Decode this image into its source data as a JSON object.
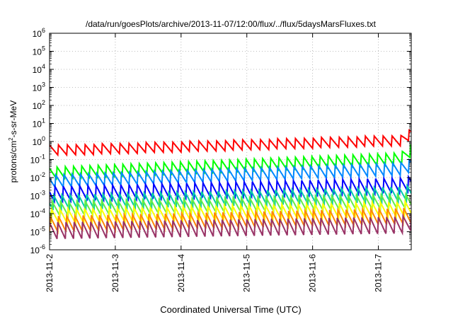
{
  "chart_data": {
    "type": "line",
    "title": "/data/run/goesPlots/archive/2013-11-07/12:00/flux/../flux/5daysMarsFluxes.txt",
    "xlabel": "Coordinated Universal Time (UTC)",
    "ylabel": "protons/cm2-s-sr-MeV",
    "ylabel_parts": {
      "base": "protons/cm",
      "sup": "2",
      "rest": "-s-sr-MeV"
    },
    "yscale": "log",
    "ylim_exp": [
      -6,
      6
    ],
    "xlim": [
      "2013-11-02 00:00",
      "2013-11-07 12:00"
    ],
    "x_ticks": [
      "2013-11-2",
      "2013-11-3",
      "2013-11-4",
      "2013-11-5",
      "2013-11-6",
      "2013-11-7"
    ],
    "y_ticks": [
      {
        "base": "10",
        "exp": "6"
      },
      {
        "base": "10",
        "exp": "5"
      },
      {
        "base": "10",
        "exp": "4"
      },
      {
        "base": "10",
        "exp": "3"
      },
      {
        "base": "10",
        "exp": "2"
      },
      {
        "base": "10",
        "exp": "1"
      },
      {
        "base": "10",
        "exp": "0"
      },
      {
        "base": "10",
        "exp": "-1"
      },
      {
        "base": "10",
        "exp": "-2"
      },
      {
        "base": "10",
        "exp": "-3"
      },
      {
        "base": "10",
        "exp": "-4"
      },
      {
        "base": "10",
        "exp": "-5"
      },
      {
        "base": "10",
        "exp": "-6"
      }
    ],
    "grid": true,
    "series": [
      {
        "color": "#ff0000",
        "base_start": 0.32,
        "base_end": 1.2,
        "amplitude": 0.6,
        "period_h": 3.2,
        "end_spike": 6
      },
      {
        "color": "#00ff00",
        "base_start": 0.018,
        "base_end": 0.12,
        "amplitude": 0.7,
        "period_h": 3.0,
        "end_spike": 0.8
      },
      {
        "color": "#0088ff",
        "base_start": 0.006,
        "base_end": 0.03,
        "amplitude": 0.75,
        "period_h": 3.0,
        "end_spike": 0.1
      },
      {
        "color": "#0000ff",
        "base_start": 0.0013,
        "base_end": 0.004,
        "amplitude": 0.9,
        "period_h": 3.0,
        "end_spike": 0.01
      },
      {
        "color": "#00ccaa",
        "base_start": 0.0004,
        "base_end": 0.0012,
        "amplitude": 0.9,
        "period_h": 3.0,
        "end_spike": 0.003
      },
      {
        "color": "#66ee44",
        "base_start": 0.00017,
        "base_end": 0.00045,
        "amplitude": 0.85,
        "period_h": 3.0,
        "end_spike": 0.0009
      },
      {
        "color": "#ffff00",
        "base_start": 7e-05,
        "base_end": 0.00018,
        "amplitude": 0.9,
        "period_h": 3.0,
        "end_spike": 0.0004
      },
      {
        "color": "#ff8800",
        "base_start": 2.5e-05,
        "base_end": 7e-05,
        "amplitude": 0.95,
        "period_h": 3.0,
        "end_spike": 0.00015
      },
      {
        "color": "#993366",
        "base_start": 1.2e-05,
        "base_end": 2.5e-05,
        "amplitude": 1.0,
        "period_h": 3.0,
        "end_spike": 8e-05
      }
    ]
  }
}
